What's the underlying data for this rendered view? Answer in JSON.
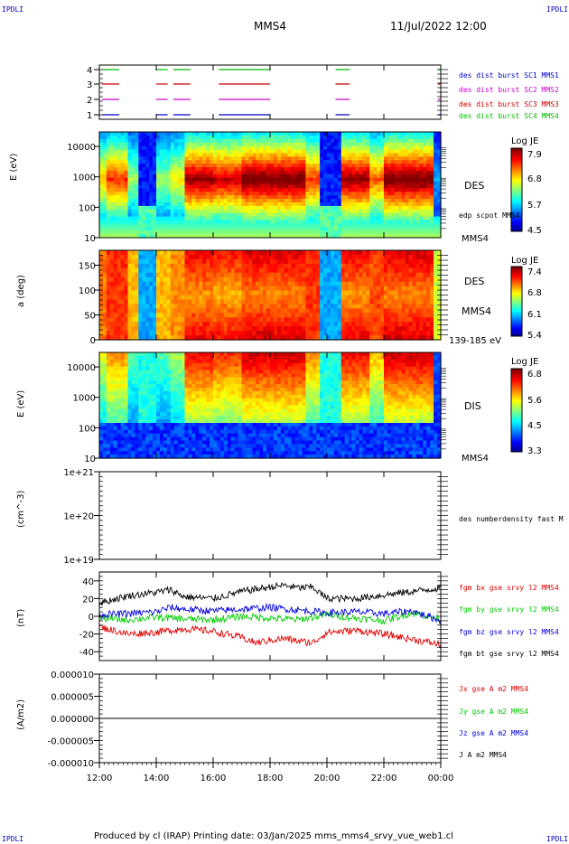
{
  "corners": {
    "tl": "IPDLI",
    "tr": "IPDLI",
    "bl": "IPDLI",
    "br": "IPDLI"
  },
  "header": {
    "spacecraft": "MMS4",
    "datetime": "11/Jul/2022 12:00"
  },
  "footer": {
    "text": "Produced by cl (IRAP)   Printing date: 03/Jan/2025   mms_mms4_srvy_vue_web1.cl"
  },
  "colors": {
    "sc1": "#0000cc",
    "sc2": "#cc00cc",
    "sc3": "#cc0000",
    "sc4": "#00bb00",
    "bx": "#dd0000",
    "by": "#00cc00",
    "bz": "#0000dd",
    "bt": "#000000"
  },
  "time_axis": {
    "ticks": [
      "12:00",
      "14:00",
      "16:00",
      "18:00",
      "20:00",
      "22:00",
      "00:00"
    ],
    "start_hours": 12,
    "end_hours": 24
  },
  "chart_data": [
    {
      "type": "line",
      "name": "burst-availability",
      "yticks": [
        "4",
        "3",
        "2",
        "1"
      ],
      "legend": [
        "des dist burst SC1 MMS1",
        "des dist burst SC2 MMS2",
        "des dist burst SC3 MMS3",
        "des dist burst SC4 MMS4"
      ],
      "intervals_hours": [
        [
          12.1,
          12.7
        ],
        [
          14.0,
          14.4
        ],
        [
          14.6,
          15.2
        ],
        [
          16.2,
          18.0
        ],
        [
          20.3,
          20.8
        ],
        [
          23.9,
          24.0
        ]
      ]
    },
    {
      "type": "heatmap",
      "name": "des-energy",
      "ylabel": "E (eV)",
      "yticks": [
        "10000",
        "1000",
        "100",
        "10"
      ],
      "ylim": [
        10,
        30000
      ],
      "yscale": "log",
      "colorbar": {
        "title": "Log JE",
        "ticks": [
          "7.9",
          "6.8",
          "5.7",
          "4.5"
        ],
        "range": [
          4.5,
          7.9
        ]
      },
      "side_label": "DES",
      "annotation": "edp scpot MMS4",
      "bottom_label": "MMS4"
    },
    {
      "type": "heatmap",
      "name": "des-pitch-angle",
      "ylabel": "a (deg)",
      "yticks": [
        "150",
        "100",
        "50",
        "0"
      ],
      "ylim": [
        0,
        180
      ],
      "colorbar": {
        "title": "Log JE",
        "ticks": [
          "7.4",
          "6.8",
          "6.1",
          "5.4"
        ],
        "range": [
          5.4,
          7.4
        ]
      },
      "side_label": "DES",
      "side_label2": "MMS4",
      "energy_range": "139-185 eV"
    },
    {
      "type": "heatmap",
      "name": "dis-energy",
      "ylabel": "E (eV)",
      "yticks": [
        "10000",
        "1000",
        "100",
        "10"
      ],
      "ylim": [
        10,
        30000
      ],
      "yscale": "log",
      "colorbar": {
        "title": "Log JE",
        "ticks": [
          "6.8",
          "5.6",
          "4.5",
          "3.3"
        ],
        "range": [
          3.3,
          6.8
        ]
      },
      "side_label": "DIS",
      "bottom_label": "MMS4"
    },
    {
      "type": "line",
      "name": "density",
      "ylabel": "(cm^-3)",
      "yticks": [
        "1e+21",
        "1e+20",
        "1e+19"
      ],
      "yscale": "log",
      "legend": [
        "des numberdensity fast M"
      ],
      "series": []
    },
    {
      "type": "line",
      "name": "magnetic-field",
      "ylabel": "(nT)",
      "yticks": [
        "40",
        "20",
        "0",
        "-20",
        "-40"
      ],
      "ylim": [
        -50,
        50
      ],
      "legend": [
        "fgm bx gse srvy l2 MMS4",
        "fgm by gse srvy l2 MMS4",
        "fgm bz gse srvy l2 MMS4",
        "fgm bt gse srvy l2 MMS4"
      ],
      "series": [
        {
          "key": "bx",
          "x": [
            12.0,
            13.0,
            14.0,
            15.0,
            16.0,
            17.0,
            17.5,
            18.0,
            18.5,
            19.0,
            19.5,
            20.0,
            21.0,
            22.0,
            23.0,
            24.0
          ],
          "y": [
            -12,
            -20,
            -18,
            -14,
            -17,
            -24,
            -30,
            -27,
            -25,
            -28,
            -30,
            -18,
            -16,
            -20,
            -26,
            -32
          ]
        },
        {
          "key": "by",
          "x": [
            12.0,
            13.0,
            14.0,
            15.0,
            16.0,
            17.0,
            18.0,
            19.0,
            20.0,
            21.0,
            22.0,
            23.0,
            24.0
          ],
          "y": [
            -2,
            -4,
            -1,
            -3,
            -4,
            0,
            -2,
            -4,
            2,
            -2,
            -5,
            4,
            -3
          ]
        },
        {
          "key": "bz",
          "x": [
            12.0,
            13.0,
            14.0,
            14.5,
            15.0,
            16.0,
            17.0,
            18.0,
            19.0,
            20.0,
            21.0,
            22.0,
            23.0,
            24.0
          ],
          "y": [
            2,
            3,
            5,
            10,
            8,
            6,
            8,
            10,
            7,
            4,
            5,
            3,
            6,
            -5
          ]
        },
        {
          "key": "bt",
          "x": [
            12.0,
            13.0,
            14.0,
            14.5,
            15.0,
            16.0,
            17.0,
            18.0,
            18.5,
            19.0,
            19.5,
            20.0,
            21.0,
            22.0,
            23.0,
            24.0
          ],
          "y": [
            15,
            23,
            27,
            30,
            22,
            20,
            28,
            33,
            35,
            32,
            33,
            20,
            20,
            24,
            28,
            32
          ]
        }
      ]
    },
    {
      "type": "line",
      "name": "current-density",
      "ylabel": "(A/m2)",
      "yticks": [
        "0.000010",
        "0.000005",
        "0.000000",
        "-0.000005",
        "-0.000010"
      ],
      "ylim": [
        -1e-05,
        1e-05
      ],
      "legend": [
        "Jx gse A m2 MMS4",
        "Jy gse A m2 MMS4",
        "Jz gse A m2 MMS4",
        "J A m2 MMS4"
      ],
      "series": [
        {
          "key": "j",
          "x": [
            12.0,
            24.0
          ],
          "y": [
            0.0,
            0.0
          ]
        }
      ]
    }
  ]
}
